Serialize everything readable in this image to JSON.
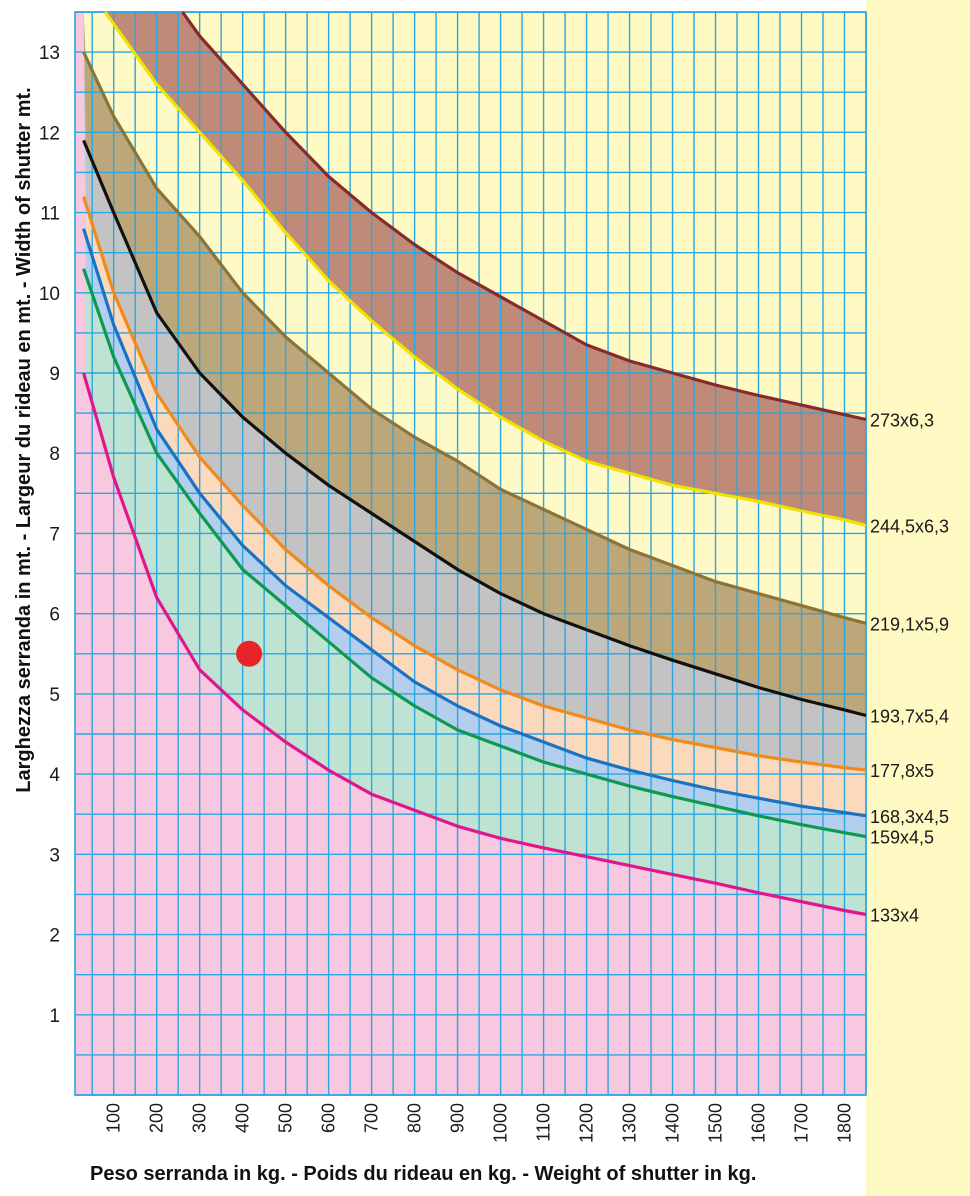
{
  "chart_data": {
    "type": "line",
    "xlabel": "Peso serranda in kg. - Poids du rideau en kg. - Weight of shutter in kg.",
    "ylabel": "Larghezza serranda in mt. - Largeur du rideau en mt. - Width of shutter  mt.",
    "xlim": [
      10,
      1850
    ],
    "ylim": [
      0,
      13.5
    ],
    "x_ticks": [
      100,
      200,
      300,
      400,
      500,
      600,
      700,
      800,
      900,
      1000,
      1100,
      1200,
      1300,
      1400,
      1500,
      1600,
      1700,
      1800
    ],
    "y_ticks": [
      1,
      2,
      3,
      4,
      5,
      6,
      7,
      8,
      9,
      10,
      11,
      12,
      13
    ],
    "grid": true,
    "series": [
      {
        "name": "133x4",
        "color": "#e0168c",
        "fill": "#f7c8e0",
        "points": [
          [
            30,
            9.0
          ],
          [
            100,
            7.7
          ],
          [
            200,
            6.2
          ],
          [
            300,
            5.3
          ],
          [
            400,
            4.8
          ],
          [
            500,
            4.4
          ],
          [
            600,
            4.05
          ],
          [
            700,
            3.75
          ],
          [
            800,
            3.55
          ],
          [
            900,
            3.35
          ],
          [
            1000,
            3.2
          ],
          [
            1100,
            3.08
          ],
          [
            1200,
            2.97
          ],
          [
            1300,
            2.86
          ],
          [
            1400,
            2.75
          ],
          [
            1500,
            2.64
          ],
          [
            1600,
            2.52
          ],
          [
            1700,
            2.41
          ],
          [
            1800,
            2.3
          ],
          [
            1850,
            2.25
          ]
        ]
      },
      {
        "name": "159x4,5",
        "color": "#0d9a50",
        "fill": "#bfe3d3",
        "points": [
          [
            30,
            10.3
          ],
          [
            100,
            9.2
          ],
          [
            200,
            8.0
          ],
          [
            300,
            7.25
          ],
          [
            400,
            6.55
          ],
          [
            500,
            6.1
          ],
          [
            600,
            5.65
          ],
          [
            700,
            5.2
          ],
          [
            800,
            4.85
          ],
          [
            900,
            4.55
          ],
          [
            1000,
            4.35
          ],
          [
            1100,
            4.15
          ],
          [
            1200,
            4.0
          ],
          [
            1300,
            3.85
          ],
          [
            1400,
            3.72
          ],
          [
            1500,
            3.6
          ],
          [
            1600,
            3.48
          ],
          [
            1700,
            3.37
          ],
          [
            1800,
            3.27
          ],
          [
            1850,
            3.22
          ]
        ]
      },
      {
        "name": "168,3x4,5",
        "color": "#1a72c4",
        "fill": "#b4cfee",
        "points": [
          [
            30,
            10.8
          ],
          [
            100,
            9.6
          ],
          [
            200,
            8.3
          ],
          [
            300,
            7.5
          ],
          [
            400,
            6.85
          ],
          [
            500,
            6.35
          ],
          [
            600,
            5.95
          ],
          [
            700,
            5.55
          ],
          [
            800,
            5.15
          ],
          [
            900,
            4.85
          ],
          [
            1000,
            4.6
          ],
          [
            1100,
            4.4
          ],
          [
            1200,
            4.2
          ],
          [
            1300,
            4.05
          ],
          [
            1400,
            3.92
          ],
          [
            1500,
            3.8
          ],
          [
            1600,
            3.7
          ],
          [
            1700,
            3.6
          ],
          [
            1800,
            3.52
          ],
          [
            1850,
            3.48
          ]
        ]
      },
      {
        "name": "177,8x5",
        "color": "#f08a1c",
        "fill": "#fbd9bd",
        "points": [
          [
            30,
            11.2
          ],
          [
            100,
            10.0
          ],
          [
            200,
            8.75
          ],
          [
            300,
            7.95
          ],
          [
            400,
            7.35
          ],
          [
            500,
            6.8
          ],
          [
            600,
            6.35
          ],
          [
            700,
            5.95
          ],
          [
            800,
            5.6
          ],
          [
            900,
            5.3
          ],
          [
            1000,
            5.05
          ],
          [
            1100,
            4.85
          ],
          [
            1200,
            4.7
          ],
          [
            1300,
            4.55
          ],
          [
            1400,
            4.43
          ],
          [
            1500,
            4.33
          ],
          [
            1600,
            4.23
          ],
          [
            1700,
            4.15
          ],
          [
            1800,
            4.08
          ],
          [
            1850,
            4.05
          ]
        ]
      },
      {
        "name": "193,7x5,4",
        "color": "#111111",
        "fill": "#c3c3c3",
        "points": [
          [
            30,
            11.9
          ],
          [
            100,
            11.0
          ],
          [
            200,
            9.75
          ],
          [
            300,
            9.0
          ],
          [
            400,
            8.45
          ],
          [
            500,
            8.0
          ],
          [
            600,
            7.6
          ],
          [
            700,
            7.25
          ],
          [
            800,
            6.9
          ],
          [
            900,
            6.55
          ],
          [
            1000,
            6.25
          ],
          [
            1100,
            6.0
          ],
          [
            1200,
            5.8
          ],
          [
            1300,
            5.6
          ],
          [
            1400,
            5.42
          ],
          [
            1500,
            5.25
          ],
          [
            1600,
            5.08
          ],
          [
            1700,
            4.93
          ],
          [
            1800,
            4.8
          ],
          [
            1850,
            4.73
          ]
        ]
      },
      {
        "name": "219,1x5,9",
        "color": "#8c7438",
        "fill": "#bca77a",
        "points": [
          [
            30,
            13.0
          ],
          [
            100,
            12.2
          ],
          [
            200,
            11.3
          ],
          [
            300,
            10.7
          ],
          [
            400,
            10.0
          ],
          [
            500,
            9.45
          ],
          [
            600,
            9.0
          ],
          [
            700,
            8.55
          ],
          [
            800,
            8.2
          ],
          [
            900,
            7.9
          ],
          [
            1000,
            7.55
          ],
          [
            1100,
            7.3
          ],
          [
            1200,
            7.05
          ],
          [
            1300,
            6.8
          ],
          [
            1400,
            6.6
          ],
          [
            1500,
            6.4
          ],
          [
            1600,
            6.25
          ],
          [
            1700,
            6.1
          ],
          [
            1800,
            5.95
          ],
          [
            1850,
            5.88
          ]
        ]
      },
      {
        "name": "244,5x6,3",
        "color": "#f2e200",
        "fill": "#fefac8",
        "points": [
          [
            80,
            13.5
          ],
          [
            100,
            13.35
          ],
          [
            200,
            12.6
          ],
          [
            300,
            12.0
          ],
          [
            400,
            11.4
          ],
          [
            500,
            10.75
          ],
          [
            600,
            10.15
          ],
          [
            700,
            9.65
          ],
          [
            800,
            9.2
          ],
          [
            900,
            8.8
          ],
          [
            1000,
            8.45
          ],
          [
            1100,
            8.15
          ],
          [
            1200,
            7.9
          ],
          [
            1300,
            7.75
          ],
          [
            1400,
            7.6
          ],
          [
            1500,
            7.5
          ],
          [
            1600,
            7.4
          ],
          [
            1700,
            7.28
          ],
          [
            1800,
            7.17
          ],
          [
            1850,
            7.1
          ]
        ]
      },
      {
        "name": "273x6,3",
        "color": "#862a2c",
        "fill": "#c08a78",
        "points": [
          [
            260,
            13.5
          ],
          [
            300,
            13.2
          ],
          [
            400,
            12.6
          ],
          [
            500,
            12.0
          ],
          [
            600,
            11.45
          ],
          [
            700,
            11.0
          ],
          [
            800,
            10.6
          ],
          [
            900,
            10.25
          ],
          [
            1000,
            9.95
          ],
          [
            1100,
            9.65
          ],
          [
            1200,
            9.35
          ],
          [
            1300,
            9.15
          ],
          [
            1400,
            9.0
          ],
          [
            1500,
            8.85
          ],
          [
            1600,
            8.72
          ],
          [
            1700,
            8.6
          ],
          [
            1800,
            8.48
          ],
          [
            1850,
            8.42
          ]
        ]
      }
    ],
    "annotations": [
      {
        "type": "point",
        "x": 415,
        "y": 5.5,
        "color": "#e8242a"
      }
    ],
    "right_band_color": "#fff9c4"
  }
}
